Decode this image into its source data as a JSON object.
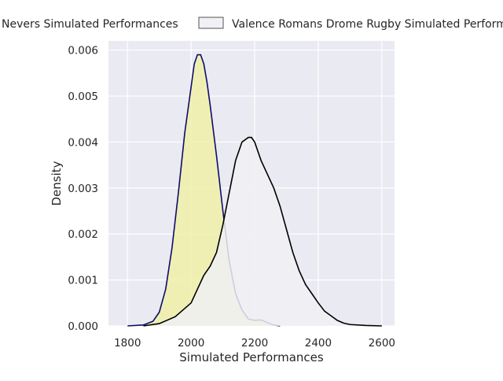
{
  "chart_data": {
    "type": "area",
    "title": "",
    "xlabel": "Simulated Performances",
    "ylabel": "Density",
    "xlim": [
      1740,
      2640
    ],
    "ylim": [
      0,
      0.0062
    ],
    "x_ticks": [
      1800,
      2000,
      2200,
      2400,
      2600
    ],
    "y_ticks": [
      0,
      0.001,
      0.002,
      0.003,
      0.004,
      0.005,
      0.006
    ],
    "x_tick_labels": [
      "1800",
      "2000",
      "2200",
      "2400",
      "2600"
    ],
    "y_tick_labels": [
      "0.000",
      "0.001",
      "0.002",
      "0.003",
      "0.004",
      "0.005",
      "0.006"
    ],
    "grid": true,
    "legend_position": "top",
    "series": [
      {
        "name": "Nevers Simulated Performances",
        "fill": "#f0f0a8",
        "line": "#0d0d6b",
        "x": [
          1800,
          1850,
          1880,
          1900,
          1920,
          1940,
          1960,
          1980,
          2000,
          2010,
          2020,
          2030,
          2040,
          2050,
          2060,
          2080,
          2100,
          2120,
          2140,
          2160,
          2180,
          2200,
          2220,
          2240,
          2260,
          2280
        ],
        "y": [
          0.0,
          2e-05,
          0.0001,
          0.0003,
          0.0008,
          0.0017,
          0.0029,
          0.0042,
          0.0052,
          0.0057,
          0.0059,
          0.0059,
          0.0057,
          0.0053,
          0.0048,
          0.0037,
          0.0025,
          0.0014,
          0.0007,
          0.00035,
          0.00015,
          0.00012,
          0.00013,
          7e-05,
          2e-05,
          0.0
        ]
      },
      {
        "name": "Valence Romans Drome Rugby Simulated Performances",
        "fill": "#f0f0f5",
        "line": "#000000",
        "x": [
          1850,
          1900,
          1950,
          2000,
          2020,
          2040,
          2060,
          2080,
          2100,
          2120,
          2140,
          2160,
          2180,
          2190,
          2200,
          2220,
          2240,
          2260,
          2280,
          2300,
          2320,
          2340,
          2360,
          2380,
          2400,
          2420,
          2440,
          2460,
          2480,
          2500,
          2550,
          2600
        ],
        "y": [
          0.0,
          5e-05,
          0.0002,
          0.0005,
          0.0008,
          0.0011,
          0.0013,
          0.0016,
          0.0022,
          0.0029,
          0.0036,
          0.004,
          0.0041,
          0.0041,
          0.004,
          0.0036,
          0.0033,
          0.003,
          0.0026,
          0.0021,
          0.0016,
          0.0012,
          0.0009,
          0.0007,
          0.0005,
          0.00032,
          0.00022,
          0.00012,
          6e-05,
          3e-05,
          1e-05,
          0.0
        ]
      }
    ]
  }
}
